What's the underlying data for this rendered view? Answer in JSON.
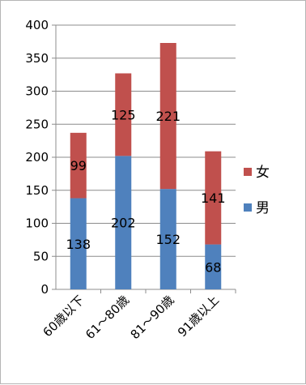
{
  "chart_data": {
    "type": "bar",
    "stacked": true,
    "categories": [
      "60歳以下",
      "61～80歳",
      "81～90歳",
      "91歳以上"
    ],
    "series": [
      {
        "name": "男",
        "values": [
          138,
          202,
          152,
          68
        ],
        "color": "#4f81bd"
      },
      {
        "name": "女",
        "values": [
          99,
          125,
          221,
          141
        ],
        "color": "#c0504d"
      }
    ],
    "title": "",
    "xlabel": "",
    "ylabel": "",
    "ylim": [
      0,
      400
    ],
    "yticks": [
      0,
      50,
      100,
      150,
      200,
      250,
      300,
      350,
      400
    ],
    "grid": true,
    "legend_position": "right",
    "legend_order": [
      "女",
      "男"
    ]
  }
}
